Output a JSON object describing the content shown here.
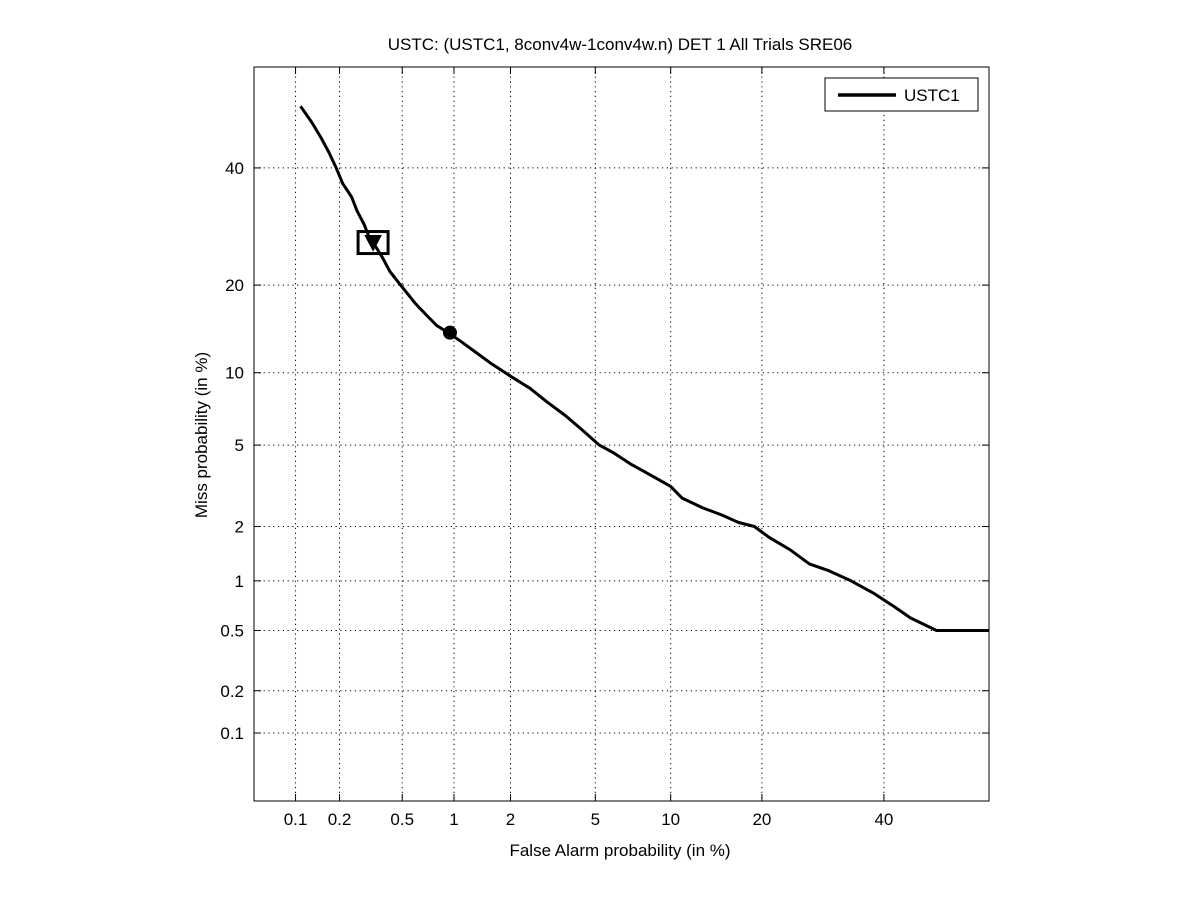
{
  "chart_data": {
    "type": "line",
    "title": "USTC: (USTC1, 8conv4w-1conv4w.n) DET 1 All Trials SRE06",
    "xlabel": "False Alarm probability (in %)",
    "ylabel": "Miss probability (in %)",
    "x_scale": "normal-deviate (probit)",
    "y_scale": "normal-deviate (probit)",
    "xlim": [
      0.05,
      60
    ],
    "ylim": [
      0.03,
      60
    ],
    "x_ticks": [
      0.1,
      0.2,
      0.5,
      1,
      2,
      5,
      10,
      20,
      40
    ],
    "x_tick_labels": [
      "0.1",
      "0.2",
      "0.5",
      "1",
      "2",
      "5",
      "10",
      "20",
      "40"
    ],
    "y_ticks": [
      0.1,
      0.2,
      0.5,
      1,
      2,
      5,
      10,
      20,
      40
    ],
    "y_tick_labels": [
      "0.1",
      "0.2",
      "0.5",
      "1",
      "2",
      "5",
      "10",
      "20",
      "40"
    ],
    "grid": true,
    "legend_position": "top-right",
    "series": [
      {
        "name": "USTC1",
        "color": "#000000",
        "x": [
          0.11,
          0.13,
          0.15,
          0.17,
          0.19,
          0.21,
          0.24,
          0.26,
          0.29,
          0.31,
          0.34,
          0.38,
          0.42,
          0.47,
          0.53,
          0.6,
          0.7,
          0.8,
          0.93,
          1.1,
          1.3,
          1.6,
          2.0,
          2.5,
          3.0,
          3.7,
          4.5,
          5.2,
          6.0,
          7.0,
          8.5,
          10,
          11,
          13,
          15,
          17,
          19,
          21,
          24,
          27,
          30,
          34,
          38,
          42,
          45,
          50,
          60
        ],
        "y": [
          52,
          49,
          46,
          43,
          40,
          37,
          34.5,
          32,
          29.5,
          27.5,
          26,
          24,
          22,
          20.5,
          19,
          17.5,
          16,
          14.8,
          14.0,
          13,
          12,
          10.8,
          9.7,
          8.7,
          7.7,
          6.7,
          5.7,
          5.0,
          4.6,
          4.1,
          3.6,
          3.2,
          2.8,
          2.5,
          2.3,
          2.1,
          2.0,
          1.75,
          1.5,
          1.25,
          1.15,
          1.0,
          0.85,
          0.7,
          0.6,
          0.5,
          0.5
        ]
      }
    ],
    "markers": [
      {
        "shape": "triangle-down",
        "x": 0.33,
        "y": 26.5,
        "boxed": true
      },
      {
        "shape": "circle",
        "x": 0.95,
        "y": 14.0,
        "boxed": false
      }
    ]
  }
}
